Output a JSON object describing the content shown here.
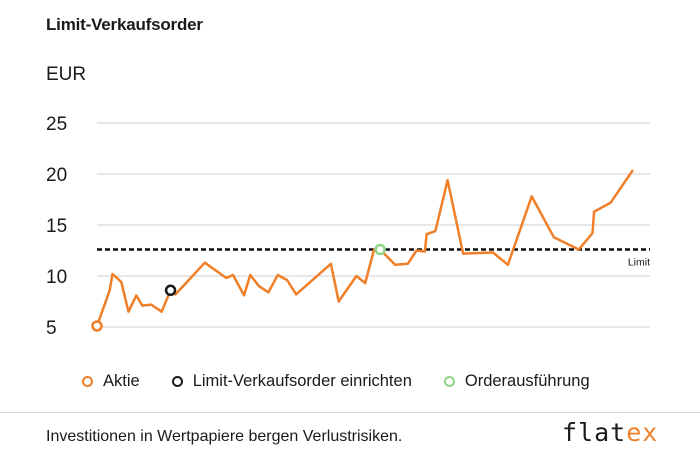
{
  "title": "Limit-Verkaufsorder",
  "unit_label": "EUR",
  "footer": {
    "note": "Investitionen in Wertpapiere bergen Verlustrisiken.",
    "logo_main": "flat",
    "logo_accent": "ex"
  },
  "legend": [
    {
      "label": "Aktie",
      "color": "#f07f28"
    },
    {
      "label": "Limit-Verkaufsorder einrichten",
      "color": "#1a1a1a"
    },
    {
      "label": "Orderausführung",
      "color": "#8fd48a"
    }
  ],
  "chart_data": {
    "type": "line",
    "ylim": [
      5,
      25
    ],
    "yticks": [
      5,
      10,
      15,
      20,
      25
    ],
    "grid": true,
    "legend_position": "bottom-left",
    "series": [
      {
        "name": "Aktie",
        "color": "#f07f28",
        "values": [
          5.1,
          8.6,
          10.2,
          9.4,
          6.5,
          8.1,
          7.1,
          7.2,
          6.5,
          8.6,
          8.2,
          11.3,
          9.8,
          10.1,
          8.1,
          10.1,
          9.0,
          8.4,
          10.1,
          9.6,
          8.2,
          11.2,
          7.5,
          10.0,
          9.3,
          12.6,
          12.6,
          11.1,
          11.2,
          12.5,
          12.4,
          14.1,
          14.4,
          19.4,
          12.2,
          12.3,
          11.1,
          17.8,
          13.8,
          12.6,
          14.2,
          16.3,
          17.2,
          20.3
        ],
        "x": [
          0,
          2.3,
          2.8,
          4.4,
          5.7,
          7.1,
          8.2,
          9.8,
          11.7,
          13.3,
          14.2,
          19.5,
          23.4,
          24.6,
          26.6,
          27.7,
          29.3,
          31.0,
          32.7,
          34.4,
          36.0,
          42.3,
          43.7,
          46.9,
          48.5,
          50.1,
          51.2,
          53.9,
          56.2,
          57.8,
          59.3,
          59.6,
          61.2,
          63.4,
          66.2,
          71.6,
          74.3,
          78.6,
          82.6,
          87.1,
          89.6,
          89.9,
          92.9,
          96.8
        ]
      }
    ],
    "limit": {
      "value": 12.6,
      "label": "Limit"
    },
    "markers": [
      {
        "series_index": 0,
        "x": 0,
        "y": 5.1,
        "color": "#f07f28",
        "legend": "Aktie"
      },
      {
        "series_index": 0,
        "x": 13.3,
        "y": 8.6,
        "color": "#1a1a1a",
        "legend": "Limit-Verkaufsorder einrichten"
      },
      {
        "series_index": 0,
        "x": 51.2,
        "y": 12.6,
        "color": "#8fd48a",
        "legend": "Orderausführung"
      }
    ],
    "xlim": [
      0,
      100
    ]
  }
}
